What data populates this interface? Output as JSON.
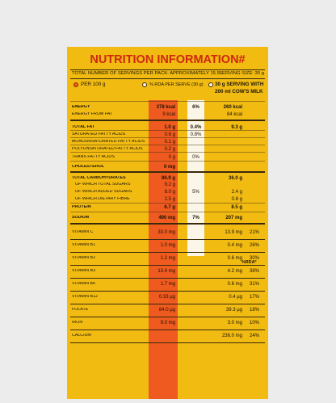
{
  "title": "NUTRITION INFORMATION#",
  "servings_text": "TOTAL NUMBER OF SERVINGS PER PACK: APPROXIMATELY 15.5",
  "serving_size": "SERVING SIZE: 30 g",
  "columns": {
    "per100": "PER 100 g",
    "rda": "% RDA PER SERVE (30 g)",
    "with_milk_1": "30 g SERVING WITH",
    "with_milk_2": "200 ml COW'S MILK"
  },
  "rda_header": "%RDA*",
  "colors": {
    "panel": "#f1bb12",
    "orange_column": "#ee5a1f",
    "title": "#d0270f",
    "light_column": "#fbf6e8"
  },
  "rows": [
    {
      "label": "ENERGY",
      "per100": "378 kcal",
      "rda": "6%",
      "milk": "260 kcal",
      "milk_rda": ""
    },
    {
      "label": "ENERGY FROM FAT",
      "per100": "9 kcal",
      "rda": "",
      "milk": "84 kcal",
      "milk_rda": ""
    },
    {
      "label": "TOTAL FAT",
      "per100": "1.0 g",
      "rda": "0.4%",
      "milk": "9.3 g",
      "milk_rda": ""
    },
    {
      "label": "SATURATED FATTY ACIDS",
      "per100": "0.6 g",
      "rda": "0.8%",
      "milk": "",
      "milk_rda": ""
    },
    {
      "label": "MONOUNSATURATED FATTY ACIDS",
      "per100": "0.1 g",
      "rda": "",
      "milk": "",
      "milk_rda": ""
    },
    {
      "label": "POLYUNSATURATED FATTY ACIDS",
      "per100": "0.2 g",
      "rda": "",
      "milk": "",
      "milk_rda": ""
    },
    {
      "label": "TRANS FATTY ACIDS",
      "per100": "0 g",
      "rda": "0%",
      "milk": "",
      "milk_rda": ""
    },
    {
      "label": "CHOLESTEROL",
      "per100": "0 mg",
      "rda": "",
      "milk": "",
      "milk_rda": ""
    },
    {
      "label": "TOTAL CARBOHYDRATES",
      "per100": "86.9 g",
      "rda": "",
      "milk": "36.0 g",
      "milk_rda": ""
    },
    {
      "label": "OF WHICH TOTAL SUGARS",
      "per100": "9.2 g",
      "rda": "",
      "milk": "",
      "milk_rda": ""
    },
    {
      "label": "OF WHICH ADDED SUGARS",
      "per100": "8.0 g",
      "rda": "5%",
      "milk": "2.4 g",
      "milk_rda": ""
    },
    {
      "label": "OF WHICH DIETARY FIBRE",
      "per100": "2.5 g",
      "rda": "",
      "milk": "0.8 g",
      "milk_rda": ""
    },
    {
      "label": "PROTEIN",
      "per100": "6.7 g",
      "rda": "",
      "milk": "8.5 g",
      "milk_rda": ""
    },
    {
      "label": "SODIUM",
      "per100": "490 mg",
      "rda": "7%",
      "milk": "207 mg",
      "milk_rda": ""
    },
    {
      "label": "VITAMIN C",
      "per100": "33.0 mg",
      "rda": "",
      "milk": "13.9 mg",
      "milk_rda": "21%"
    },
    {
      "label": "VITAMIN B1",
      "per100": "1.0 mg",
      "rda": "",
      "milk": "0.4 mg",
      "milk_rda": "26%"
    },
    {
      "label": "VITAMIN B2",
      "per100": "1.2 mg",
      "rda": "",
      "milk": "0.6 mg",
      "milk_rda": "30%"
    },
    {
      "label": "VITAMIN B3",
      "per100": "13.4 mg",
      "rda": "",
      "milk": "4.2 mg",
      "milk_rda": "38%"
    },
    {
      "label": "VITAMIN B6",
      "per100": "1.7 mg",
      "rda": "",
      "milk": "0.6 mg",
      "milk_rda": "31%"
    },
    {
      "label": "VITAMIN B12",
      "per100": "0.33 µg",
      "rda": "",
      "milk": "0.4 µg",
      "milk_rda": "17%"
    },
    {
      "label": "FOLATE",
      "per100": "84.0 µg",
      "rda": "",
      "milk": "39.3 µg",
      "milk_rda": "18%"
    },
    {
      "label": "IRON",
      "per100": "9.0 mg",
      "rda": "",
      "milk": "3.0 mg",
      "milk_rda": "10%"
    },
    {
      "label": "CALCIUM",
      "per100": "",
      "rda": "",
      "milk": "236.0 mg",
      "milk_rda": "24%"
    }
  ]
}
